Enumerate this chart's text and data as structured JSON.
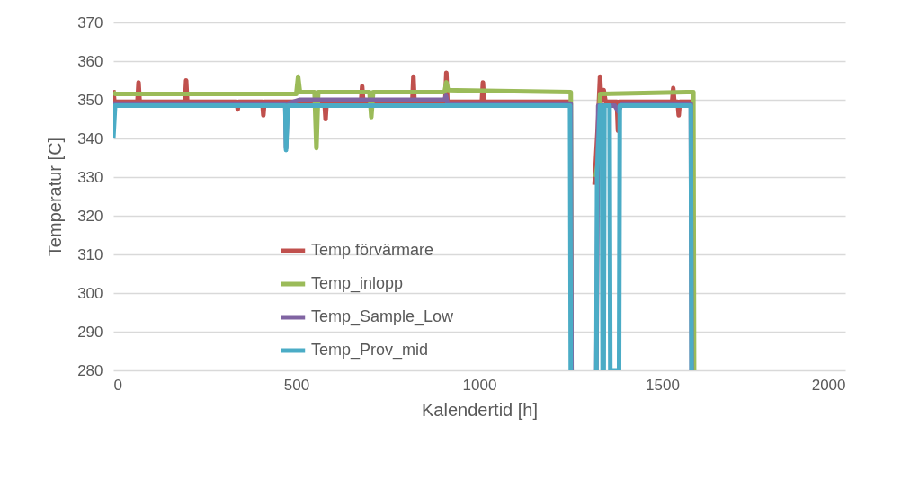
{
  "chart_data": {
    "type": "line",
    "xlabel": "Kalendertid [h]",
    "ylabel": "Temperatur [C]",
    "xlim": [
      0,
      2000
    ],
    "xticks": [
      0,
      500,
      1000,
      1500,
      2000
    ],
    "ylim": [
      280,
      370
    ],
    "yticks": [
      280,
      290,
      300,
      310,
      320,
      330,
      340,
      350,
      360,
      370
    ],
    "grid": "y",
    "legend": "left",
    "marker": "none",
    "line_style": "solid",
    "series": [
      {
        "name": "Temp förvärmare",
        "color": "#c0504d",
        "x": [
          0,
          3,
          6,
          66,
          69,
          72,
          196,
          199,
          202,
          337,
          340,
          343,
          407,
          410,
          413,
          577,
          580,
          583,
          677,
          680,
          683,
          817,
          820,
          823,
          907,
          910,
          913,
          1007,
          1010,
          1013,
          1250,
          1252,
          1285,
          1315,
          1325,
          1330,
          1333,
          1336,
          1340,
          1345,
          1376,
          1379,
          1382,
          1527,
          1530,
          1533,
          1542,
          1545,
          1548,
          1580,
          1582
        ],
        "values": [
          352.5,
          349.5,
          349.5,
          349.5,
          354.5,
          349.5,
          349.5,
          355,
          349.5,
          349.5,
          347.5,
          349.5,
          349.5,
          346,
          349.5,
          349.5,
          345,
          349.5,
          349.5,
          353.5,
          349.5,
          349.5,
          356,
          349.5,
          349.5,
          357,
          349.5,
          349.5,
          354.5,
          349.5,
          349.5,
          null,
          null,
          328,
          345,
          356,
          349.5,
          352.5,
          352.5,
          349.5,
          349.5,
          342,
          349.5,
          349.5,
          353,
          349.5,
          349.5,
          346,
          349.5,
          349.5,
          280
        ]
      },
      {
        "name": "Temp_inlopp",
        "color": "#9bbb59",
        "x": [
          0,
          5,
          300,
          500,
          505,
          510,
          550,
          555,
          560,
          700,
          705,
          710,
          905,
          910,
          915,
          1250,
          1252,
          1285,
          1318,
          1323,
          1330,
          1585,
          1587
        ],
        "values": [
          352,
          351.5,
          351.5,
          351.5,
          356,
          352,
          352,
          337.5,
          352,
          352,
          345.5,
          352,
          352,
          354.5,
          352.5,
          352,
          280,
          null,
          330,
          333,
          351.5,
          352,
          280
        ]
      },
      {
        "name": "Temp_Sample_Low",
        "color": "#8064a2",
        "x": [
          0,
          470,
          472,
          476,
          510,
          905,
          909,
          913,
          1250,
          1252,
          1285,
          1320,
          1325,
          1370,
          1380,
          1390,
          1578,
          1580
        ],
        "values": [
          349,
          349,
          337.5,
          349,
          350,
          350,
          351,
          349,
          349,
          280,
          null,
          280,
          348.5,
          348.5,
          347,
          349,
          349,
          280
        ]
      },
      {
        "name": "Temp_Prov_mid",
        "color": "#4bacc6",
        "x": [
          0,
          5,
          470,
          472,
          477,
          1248,
          1250,
          1285,
          1320,
          1322,
          1330,
          1335,
          1337,
          1340,
          1342,
          1356,
          1358,
          1382,
          1384,
          1578,
          1580
        ],
        "values": [
          340,
          348.5,
          348.5,
          337,
          348.5,
          348.5,
          280,
          null,
          280,
          331,
          348.5,
          348.5,
          280,
          280,
          348.5,
          348.5,
          280,
          280,
          348.5,
          348.5,
          280
        ]
      }
    ]
  }
}
